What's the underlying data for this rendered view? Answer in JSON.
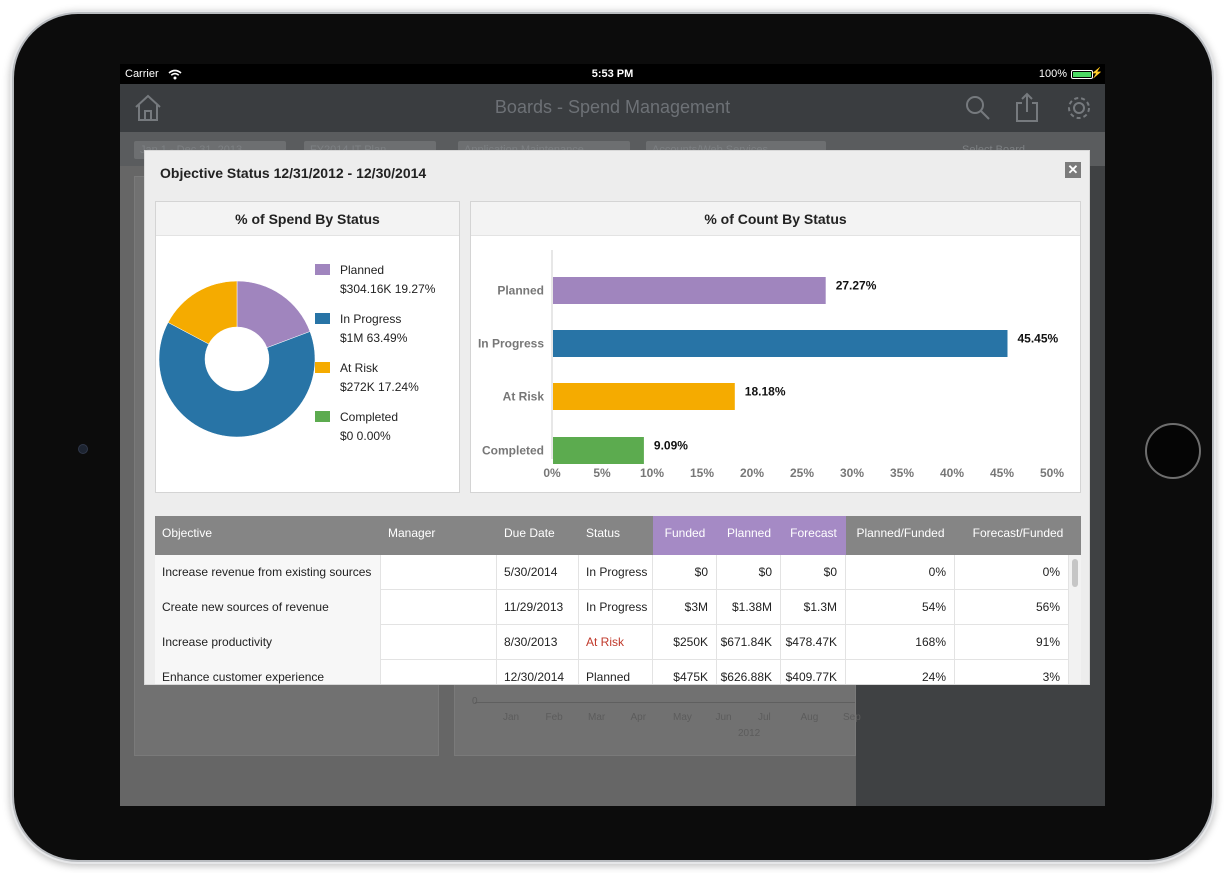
{
  "status_bar": {
    "carrier": "Carrier",
    "time": "5:53 PM",
    "battery": "100%"
  },
  "app": {
    "title": "Boards - Spend Management",
    "filters": [
      "Jan 1 - Dec 31, 2013",
      "FY2014 IT Plan",
      "Application Maintenance",
      "Accounts/Web Services"
    ],
    "select_label": "Select Board",
    "bg_months": [
      "Jan",
      "Feb",
      "Mar",
      "Apr",
      "May",
      "Jun",
      "Jul",
      "Aug",
      "Sep"
    ],
    "bg_year": "2012",
    "bg_zero": "0"
  },
  "modal": {
    "title": "Objective Status 12/31/2012 - 12/30/2014",
    "close_label": "✕"
  },
  "colors": {
    "planned": "#a085be",
    "in_progress": "#2874a6",
    "at_risk": "#f5ab00",
    "completed": "#5cab4f",
    "at_risk_text": "#c0392b"
  },
  "spend_chart": {
    "title": "% of Spend By Status",
    "legend": [
      {
        "name": "Planned",
        "value": "$304.16K 19.27%"
      },
      {
        "name": "In Progress",
        "value": "$1M 63.49%"
      },
      {
        "name": "At Risk",
        "value": "$272K 17.24%"
      },
      {
        "name": "Completed",
        "value": "$0 0.00%"
      }
    ]
  },
  "count_chart": {
    "title": "% of Count By Status"
  },
  "chart_data": [
    {
      "type": "pie",
      "title": "% of Spend By Status",
      "labels": [
        "Planned",
        "In Progress",
        "At Risk",
        "Completed"
      ],
      "values": [
        19.27,
        63.49,
        17.24,
        0.0
      ],
      "amounts": [
        "$304.16K",
        "$1M",
        "$272K",
        "$0"
      ],
      "donut": true,
      "legend": "right"
    },
    {
      "type": "bar",
      "orientation": "horizontal",
      "title": "% of Count By Status",
      "categories": [
        "Planned",
        "In Progress",
        "At Risk",
        "Completed"
      ],
      "values": [
        27.27,
        45.45,
        18.18,
        9.09
      ],
      "value_labels": [
        "27.27%",
        "45.45%",
        "18.18%",
        "9.09%"
      ],
      "xlim": [
        0,
        50
      ],
      "xticks": [
        "0%",
        "5%",
        "10%",
        "15%",
        "20%",
        "25%",
        "30%",
        "35%",
        "40%",
        "45%",
        "50%"
      ]
    }
  ],
  "table": {
    "headers": [
      "Objective",
      "Manager",
      "Due Date",
      "Status",
      "Funded",
      "Planned",
      "Forecast",
      "Planned/Funded",
      "Forecast/Funded"
    ],
    "rows": [
      {
        "objective": "Increase revenue from existing sources",
        "manager": "",
        "due": "5/30/2014",
        "status": "In Progress",
        "funded": "$0",
        "planned": "$0",
        "forecast": "$0",
        "pf": "0%",
        "ff": "0%"
      },
      {
        "objective": "Create new sources of revenue",
        "manager": "",
        "due": "11/29/2013",
        "status": "In Progress",
        "funded": "$3M",
        "planned": "$1.38M",
        "forecast": "$1.3M",
        "pf": "54%",
        "ff": "56%"
      },
      {
        "objective": "Increase productivity",
        "manager": "",
        "due": "8/30/2013",
        "status": "At Risk",
        "funded": "$250K",
        "planned": "$671.84K",
        "forecast": "$478.47K",
        "pf": "168%",
        "ff": "91%"
      },
      {
        "objective": "Enhance customer experience",
        "manager": "",
        "due": "12/30/2014",
        "status": "Planned",
        "funded": "$475K",
        "planned": "$626.88K",
        "forecast": "$409.77K",
        "pf": "24%",
        "ff": "3%"
      }
    ]
  }
}
